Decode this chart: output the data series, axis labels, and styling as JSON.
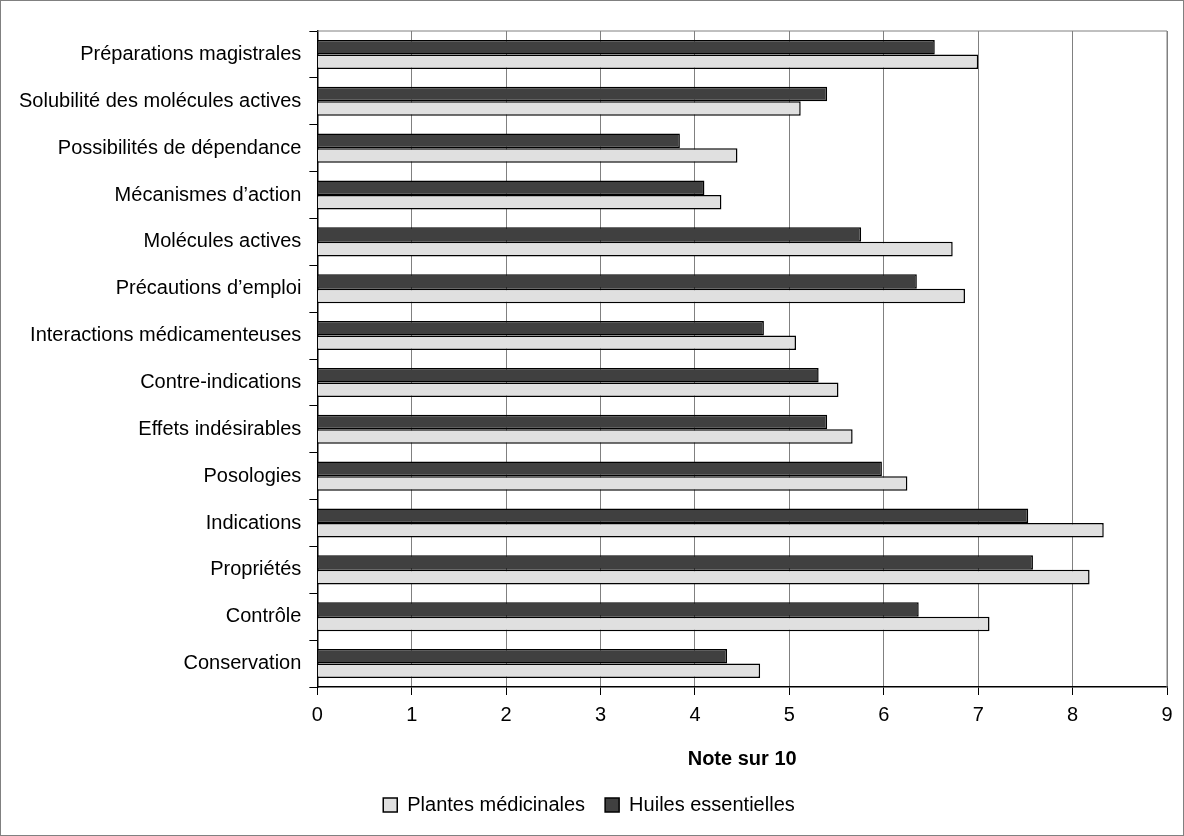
{
  "chart_data": {
    "type": "bar",
    "orientation": "horizontal",
    "xlabel": "Note sur 10",
    "categories": [
      "Préparations magistrales",
      "Solubilité des molécules actives",
      "Possibilités de dépendance",
      "Mécanismes d’action",
      "Molécules actives",
      "Précautions d’emploi",
      "Interactions médicamenteuses",
      "Contre-indications",
      "Effets indésirables",
      "Posologies",
      "Indications",
      "Propriétés",
      "Contrôle",
      "Conservation"
    ],
    "series": [
      {
        "name": "Plantes médicinales",
        "color": "#e0e0e0",
        "values": [
          7.0,
          5.12,
          4.45,
          4.28,
          6.73,
          6.86,
          5.07,
          5.52,
          5.67,
          6.25,
          8.33,
          8.18,
          7.12,
          4.69
        ]
      },
      {
        "name": "Huiles essentielles",
        "color": "#404040",
        "values": [
          6.54,
          5.4,
          3.84,
          4.1,
          5.76,
          6.35,
          4.73,
          5.31,
          5.4,
          5.98,
          7.53,
          7.58,
          6.37,
          4.34
        ]
      }
    ],
    "xlim": [
      0,
      9
    ],
    "xticks": [
      0,
      1,
      2,
      3,
      4,
      5,
      6,
      7,
      8,
      9
    ],
    "grid": "x",
    "legend": "bottom"
  }
}
